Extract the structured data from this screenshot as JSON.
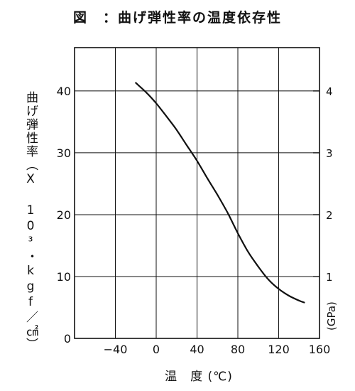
{
  "chart_data": {
    "type": "line",
    "title": "図　：曲げ弾性率の温度依存性",
    "xlabel": "温　度 (℃)",
    "ylabel": "曲げ弾性率（X 10³・kgf／㎠）",
    "y2label": "(GPa)",
    "xlim": [
      -80,
      160
    ],
    "ylim": [
      0,
      47
    ],
    "y2lim": [
      0,
      4.7
    ],
    "x_ticks": [
      -40,
      0,
      40,
      80,
      120,
      160
    ],
    "x_tick_labels": [
      "−40",
      "0",
      "40",
      "80",
      "120",
      "160"
    ],
    "y_ticks": [
      0,
      10,
      20,
      30,
      40
    ],
    "y_tick_labels": [
      "0",
      "10",
      "20",
      "30",
      "40"
    ],
    "y2_ticks": [
      1,
      2,
      3,
      4
    ],
    "y2_tick_labels": [
      "1",
      "2",
      "3",
      "4"
    ],
    "grid": true,
    "series": [
      {
        "x": [
          -20,
          -10,
          0,
          10,
          20,
          30,
          40,
          50,
          60,
          70,
          80,
          90,
          100,
          110,
          120,
          130,
          140,
          145
        ],
        "y": [
          41.3,
          39.8,
          38.0,
          35.9,
          33.7,
          31.2,
          28.7,
          25.9,
          23.2,
          20.3,
          17.0,
          14.0,
          11.6,
          9.5,
          8.0,
          6.9,
          6.1,
          5.8
        ]
      }
    ]
  }
}
